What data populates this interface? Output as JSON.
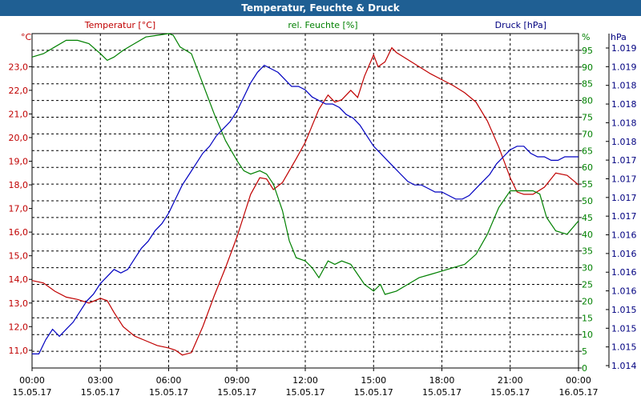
{
  "chart_data": {
    "type": "line",
    "title": "Temperatur, Feuchte & Druck",
    "x_range": [
      "2017-05-15 00:00",
      "2017-05-16 00:00"
    ],
    "x_ticks": [
      {
        "time": "00:00",
        "date": "15.05.17"
      },
      {
        "time": "03:00",
        "date": "15.05.17"
      },
      {
        "time": "06:00",
        "date": "15.05.17"
      },
      {
        "time": "09:00",
        "date": "15.05.17"
      },
      {
        "time": "12:00",
        "date": "15.05.17"
      },
      {
        "time": "15:00",
        "date": "15.05.17"
      },
      {
        "time": "18:00",
        "date": "15.05.17"
      },
      {
        "time": "21:00",
        "date": "15.05.17"
      },
      {
        "time": "00:00",
        "date": "16.05.17"
      }
    ],
    "grid": true,
    "axes": {
      "temperature": {
        "label": "Temperatur [°C]",
        "unit": "°C",
        "ylim": [
          10.25,
          24.4
        ],
        "ticks": [
          "11,0",
          "12,0",
          "13,0",
          "14,0",
          "15,0",
          "16,0",
          "17,0",
          "18,0",
          "19,0",
          "20,0",
          "21,0",
          "22,0",
          "23,0"
        ]
      },
      "humidity": {
        "label": "rel. Feuchte [%]",
        "unit": "%",
        "ylim": [
          0,
          100
        ],
        "ticks": [
          "0",
          "5",
          "10",
          "15",
          "20",
          "25",
          "30",
          "35",
          "40",
          "45",
          "50",
          "55",
          "60",
          "65",
          "70",
          "75",
          "80",
          "85",
          "90",
          "95"
        ]
      },
      "pressure": {
        "label": "Druck [hPa]",
        "unit": "hPa",
        "ylim": [
          1014.4,
          1019.15
        ],
        "ticks": [
          "1.014",
          "1.015",
          "1.015",
          "1.015",
          "1.016",
          "1.016",
          "1.016",
          "1.016",
          "1.017",
          "1.017",
          "1.017",
          "1.017",
          "1.018",
          "1.018",
          "1.018",
          "1.018",
          "1.019",
          "1.019"
        ]
      }
    },
    "series": [
      {
        "name": "Temperatur [°C]",
        "axis": "temperature",
        "color": "#c00000",
        "points": [
          [
            0.0,
            13.95
          ],
          [
            0.5,
            13.85
          ],
          [
            1.0,
            13.5
          ],
          [
            1.5,
            13.25
          ],
          [
            2.0,
            13.15
          ],
          [
            2.5,
            13.0
          ],
          [
            3.0,
            13.2
          ],
          [
            3.3,
            13.1
          ],
          [
            3.6,
            12.6
          ],
          [
            4.0,
            12.0
          ],
          [
            4.5,
            11.6
          ],
          [
            5.0,
            11.4
          ],
          [
            5.5,
            11.2
          ],
          [
            6.0,
            11.1
          ],
          [
            6.3,
            11.0
          ],
          [
            6.6,
            10.8
          ],
          [
            7.0,
            10.9
          ],
          [
            7.5,
            12.0
          ],
          [
            8.0,
            13.3
          ],
          [
            8.5,
            14.5
          ],
          [
            9.0,
            15.8
          ],
          [
            9.3,
            16.7
          ],
          [
            9.6,
            17.6
          ],
          [
            10.0,
            18.3
          ],
          [
            10.3,
            18.25
          ],
          [
            10.6,
            17.8
          ],
          [
            11.0,
            18.1
          ],
          [
            11.3,
            18.6
          ],
          [
            11.6,
            19.1
          ],
          [
            12.0,
            19.8
          ],
          [
            12.3,
            20.5
          ],
          [
            12.6,
            21.2
          ],
          [
            13.0,
            21.8
          ],
          [
            13.3,
            21.5
          ],
          [
            13.6,
            21.6
          ],
          [
            14.0,
            22.0
          ],
          [
            14.3,
            21.7
          ],
          [
            14.6,
            22.6
          ],
          [
            15.0,
            23.5
          ],
          [
            15.2,
            23.0
          ],
          [
            15.5,
            23.2
          ],
          [
            15.8,
            23.8
          ],
          [
            16.0,
            23.6
          ],
          [
            16.5,
            23.3
          ],
          [
            17.0,
            23.0
          ],
          [
            17.5,
            22.7
          ],
          [
            18.0,
            22.45
          ],
          [
            18.5,
            22.2
          ],
          [
            19.0,
            21.9
          ],
          [
            19.5,
            21.5
          ],
          [
            20.0,
            20.7
          ],
          [
            20.5,
            19.6
          ],
          [
            21.0,
            18.3
          ],
          [
            21.3,
            17.7
          ],
          [
            21.6,
            17.6
          ],
          [
            22.0,
            17.6
          ],
          [
            22.5,
            17.9
          ],
          [
            23.0,
            18.5
          ],
          [
            23.5,
            18.4
          ],
          [
            24.0,
            18.0
          ]
        ]
      },
      {
        "name": "rel. Feuchte [%]",
        "axis": "humidity",
        "color": "#008000",
        "points": [
          [
            0.0,
            93
          ],
          [
            0.5,
            94
          ],
          [
            1.0,
            96
          ],
          [
            1.5,
            98
          ],
          [
            2.0,
            98
          ],
          [
            2.5,
            97
          ],
          [
            3.0,
            94
          ],
          [
            3.3,
            92
          ],
          [
            3.6,
            93
          ],
          [
            4.0,
            95
          ],
          [
            4.5,
            97
          ],
          [
            5.0,
            99
          ],
          [
            5.5,
            99.5
          ],
          [
            6.0,
            100
          ],
          [
            6.2,
            99.5
          ],
          [
            6.5,
            96
          ],
          [
            7.0,
            94
          ],
          [
            7.5,
            85
          ],
          [
            8.0,
            76
          ],
          [
            8.5,
            68
          ],
          [
            9.0,
            62
          ],
          [
            9.3,
            59
          ],
          [
            9.6,
            58
          ],
          [
            10.0,
            59
          ],
          [
            10.3,
            58
          ],
          [
            10.6,
            55
          ],
          [
            11.0,
            47
          ],
          [
            11.3,
            38
          ],
          [
            11.6,
            33
          ],
          [
            12.0,
            32
          ],
          [
            12.3,
            30
          ],
          [
            12.6,
            27
          ],
          [
            13.0,
            32
          ],
          [
            13.3,
            31
          ],
          [
            13.6,
            32
          ],
          [
            14.0,
            31
          ],
          [
            14.3,
            28
          ],
          [
            14.6,
            25
          ],
          [
            15.0,
            23
          ],
          [
            15.3,
            25
          ],
          [
            15.5,
            22
          ],
          [
            16.0,
            23
          ],
          [
            16.5,
            25
          ],
          [
            17.0,
            27
          ],
          [
            17.5,
            28
          ],
          [
            18.0,
            29
          ],
          [
            18.5,
            30
          ],
          [
            19.0,
            31
          ],
          [
            19.5,
            34
          ],
          [
            20.0,
            40
          ],
          [
            20.5,
            48
          ],
          [
            21.0,
            53
          ],
          [
            21.5,
            53
          ],
          [
            22.0,
            53
          ],
          [
            22.3,
            52
          ],
          [
            22.6,
            45
          ],
          [
            23.0,
            41
          ],
          [
            23.5,
            40
          ],
          [
            24.0,
            44
          ]
        ]
      },
      {
        "name": "Druck [hPa]",
        "axis": "pressure",
        "color": "#0000c0",
        "points": [
          [
            0.0,
            1014.6
          ],
          [
            0.3,
            1014.6
          ],
          [
            0.6,
            1014.8
          ],
          [
            0.9,
            1014.95
          ],
          [
            1.2,
            1014.85
          ],
          [
            1.5,
            1014.95
          ],
          [
            1.8,
            1015.05
          ],
          [
            2.1,
            1015.2
          ],
          [
            2.4,
            1015.35
          ],
          [
            2.7,
            1015.45
          ],
          [
            3.0,
            1015.6
          ],
          [
            3.3,
            1015.7
          ],
          [
            3.6,
            1015.8
          ],
          [
            3.9,
            1015.75
          ],
          [
            4.2,
            1015.8
          ],
          [
            4.5,
            1015.95
          ],
          [
            4.8,
            1016.1
          ],
          [
            5.1,
            1016.2
          ],
          [
            5.4,
            1016.35
          ],
          [
            5.7,
            1016.45
          ],
          [
            6.0,
            1016.6
          ],
          [
            6.3,
            1016.8
          ],
          [
            6.6,
            1017.0
          ],
          [
            6.9,
            1017.15
          ],
          [
            7.2,
            1017.3
          ],
          [
            7.5,
            1017.45
          ],
          [
            7.8,
            1017.55
          ],
          [
            8.1,
            1017.7
          ],
          [
            8.4,
            1017.8
          ],
          [
            8.7,
            1017.9
          ],
          [
            9.0,
            1018.05
          ],
          [
            9.3,
            1018.25
          ],
          [
            9.6,
            1018.45
          ],
          [
            9.9,
            1018.6
          ],
          [
            10.2,
            1018.7
          ],
          [
            10.5,
            1018.65
          ],
          [
            10.8,
            1018.6
          ],
          [
            11.1,
            1018.5
          ],
          [
            11.4,
            1018.4
          ],
          [
            11.7,
            1018.4
          ],
          [
            12.0,
            1018.35
          ],
          [
            12.3,
            1018.25
          ],
          [
            12.6,
            1018.2
          ],
          [
            12.9,
            1018.15
          ],
          [
            13.2,
            1018.15
          ],
          [
            13.5,
            1018.1
          ],
          [
            13.8,
            1018.0
          ],
          [
            14.1,
            1017.95
          ],
          [
            14.4,
            1017.85
          ],
          [
            14.7,
            1017.7
          ],
          [
            15.0,
            1017.55
          ],
          [
            15.3,
            1017.45
          ],
          [
            15.6,
            1017.35
          ],
          [
            15.9,
            1017.25
          ],
          [
            16.2,
            1017.15
          ],
          [
            16.5,
            1017.05
          ],
          [
            16.8,
            1017.0
          ],
          [
            17.1,
            1017.0
          ],
          [
            17.4,
            1016.95
          ],
          [
            17.7,
            1016.9
          ],
          [
            18.0,
            1016.9
          ],
          [
            18.3,
            1016.85
          ],
          [
            18.6,
            1016.8
          ],
          [
            18.9,
            1016.8
          ],
          [
            19.2,
            1016.85
          ],
          [
            19.5,
            1016.95
          ],
          [
            19.8,
            1017.05
          ],
          [
            20.1,
            1017.15
          ],
          [
            20.4,
            1017.3
          ],
          [
            20.7,
            1017.4
          ],
          [
            21.0,
            1017.5
          ],
          [
            21.3,
            1017.55
          ],
          [
            21.6,
            1017.55
          ],
          [
            21.9,
            1017.45
          ],
          [
            22.2,
            1017.4
          ],
          [
            22.5,
            1017.4
          ],
          [
            22.8,
            1017.35
          ],
          [
            23.1,
            1017.35
          ],
          [
            23.4,
            1017.4
          ],
          [
            23.7,
            1017.4
          ],
          [
            24.0,
            1017.4
          ]
        ]
      }
    ],
    "legend": "top"
  }
}
